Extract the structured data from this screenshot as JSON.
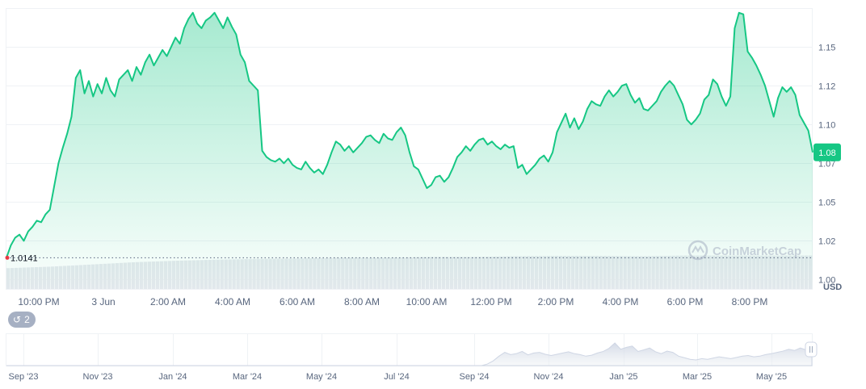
{
  "chart_data": {
    "type": "area",
    "y_unit": "USD",
    "ylim": [
      0.994,
      1.175
    ],
    "y_ticks": [
      "1.15",
      "1.12",
      "1.10",
      "1.07",
      "1.05",
      "1.02",
      "1.00"
    ],
    "y_tick_values": [
      1.15,
      1.125,
      1.1,
      1.075,
      1.05,
      1.025,
      1.0
    ],
    "x_tick_labels": [
      "10:00 PM",
      "3 Jun",
      "2:00 AM",
      "4:00 AM",
      "6:00 AM",
      "8:00 AM",
      "10:00 AM",
      "12:00 PM",
      "2:00 PM",
      "4:00 PM",
      "6:00 PM",
      "8:00 PM"
    ],
    "current_price_label": "1.08",
    "open_price_label": "1.0141",
    "open_price": 1.0141,
    "watermark": "CoinMarketCap",
    "colors": {
      "line": "#16c784",
      "fill": "#16c784",
      "badge": "#16c784",
      "open_dot": "#ea3943",
      "grid": "#eff2f5"
    },
    "series": [
      {
        "values": [
          1.0141,
          1.022,
          1.027,
          1.029,
          1.025,
          1.031,
          1.034,
          1.038,
          1.037,
          1.042,
          1.045,
          1.06,
          1.075,
          1.085,
          1.094,
          1.105,
          1.13,
          1.135,
          1.12,
          1.128,
          1.118,
          1.126,
          1.12,
          1.13,
          1.122,
          1.118,
          1.129,
          1.132,
          1.135,
          1.128,
          1.137,
          1.132,
          1.14,
          1.145,
          1.138,
          1.143,
          1.148,
          1.144,
          1.15,
          1.156,
          1.152,
          1.162,
          1.168,
          1.172,
          1.165,
          1.162,
          1.167,
          1.169,
          1.172,
          1.167,
          1.162,
          1.169,
          1.163,
          1.158,
          1.145,
          1.14,
          1.128,
          1.125,
          1.122,
          1.083,
          1.079,
          1.077,
          1.076,
          1.078,
          1.075,
          1.078,
          1.074,
          1.072,
          1.071,
          1.076,
          1.072,
          1.069,
          1.071,
          1.068,
          1.074,
          1.082,
          1.089,
          1.087,
          1.083,
          1.086,
          1.082,
          1.085,
          1.088,
          1.092,
          1.093,
          1.09,
          1.088,
          1.094,
          1.091,
          1.09,
          1.095,
          1.098,
          1.093,
          1.082,
          1.073,
          1.071,
          1.065,
          1.059,
          1.061,
          1.066,
          1.067,
          1.063,
          1.066,
          1.072,
          1.079,
          1.082,
          1.086,
          1.083,
          1.087,
          1.09,
          1.091,
          1.087,
          1.089,
          1.086,
          1.084,
          1.087,
          1.085,
          1.086,
          1.072,
          1.074,
          1.068,
          1.071,
          1.074,
          1.078,
          1.08,
          1.076,
          1.082,
          1.095,
          1.101,
          1.107,
          1.098,
          1.104,
          1.097,
          1.102,
          1.11,
          1.115,
          1.113,
          1.112,
          1.118,
          1.122,
          1.118,
          1.121,
          1.125,
          1.126,
          1.119,
          1.114,
          1.117,
          1.11,
          1.109,
          1.112,
          1.115,
          1.121,
          1.125,
          1.128,
          1.125,
          1.119,
          1.113,
          1.103,
          1.1,
          1.103,
          1.107,
          1.116,
          1.119,
          1.129,
          1.126,
          1.118,
          1.112,
          1.118,
          1.162,
          1.172,
          1.171,
          1.147,
          1.143,
          1.138,
          1.132,
          1.125,
          1.115,
          1.105,
          1.117,
          1.124,
          1.121,
          1.124,
          1.119,
          1.106,
          1.101,
          1.096,
          1.082
        ]
      }
    ],
    "volume_relative": [
      0.56,
      0.6,
      0.66,
      0.72,
      0.76,
      0.79,
      0.81,
      0.82,
      0.84,
      0.84,
      0.86,
      0.86,
      0.88,
      0.89,
      0.89,
      0.88,
      0.9,
      0.9,
      0.9,
      0.9
    ]
  },
  "overview": {
    "x_tick_labels": [
      "Sep '23",
      "Nov '23",
      "Jan '24",
      "Mar '24",
      "May '24",
      "Jul '24",
      "Sep '24",
      "Nov '24",
      "Jan '25",
      "Mar '25",
      "May '25"
    ],
    "values": [
      0,
      0,
      0,
      0,
      0,
      0,
      0,
      0,
      0,
      0,
      0,
      0,
      0,
      0,
      0,
      0,
      0,
      0,
      0,
      0,
      0,
      0,
      0,
      0,
      0,
      0,
      0,
      0,
      0,
      0,
      0,
      0,
      0,
      0,
      0,
      0,
      0,
      0,
      0,
      0,
      0,
      0,
      0,
      0,
      0,
      0,
      0,
      0,
      0,
      0,
      0,
      0,
      0,
      0,
      0,
      0,
      0,
      0,
      0,
      0,
      0,
      0,
      0,
      0,
      0,
      0,
      0,
      0,
      0,
      0,
      0,
      0,
      0,
      0,
      0,
      0,
      0,
      0,
      0,
      0,
      0,
      0,
      0,
      0.05,
      0.15,
      0.3,
      0.42,
      0.35,
      0.38,
      0.45,
      0.34,
      0.4,
      0.42,
      0.36,
      0.32,
      0.36,
      0.4,
      0.44,
      0.38,
      0.35,
      0.3,
      0.33,
      0.4,
      0.45,
      0.55,
      0.72,
      0.52,
      0.58,
      0.62,
      0.45,
      0.5,
      0.56,
      0.44,
      0.38,
      0.46,
      0.42,
      0.3,
      0.25,
      0.2,
      0.18,
      0.22,
      0.2,
      0.24,
      0.28,
      0.25,
      0.22,
      0.26,
      0.3,
      0.32,
      0.28,
      0.3,
      0.35,
      0.38,
      0.42,
      0.46,
      0.52,
      0.48,
      0.56,
      0.5,
      0.6
    ],
    "handle_icon": "pause-icon"
  },
  "controls": {
    "history_count": "2",
    "history_icon": "history-icon"
  }
}
